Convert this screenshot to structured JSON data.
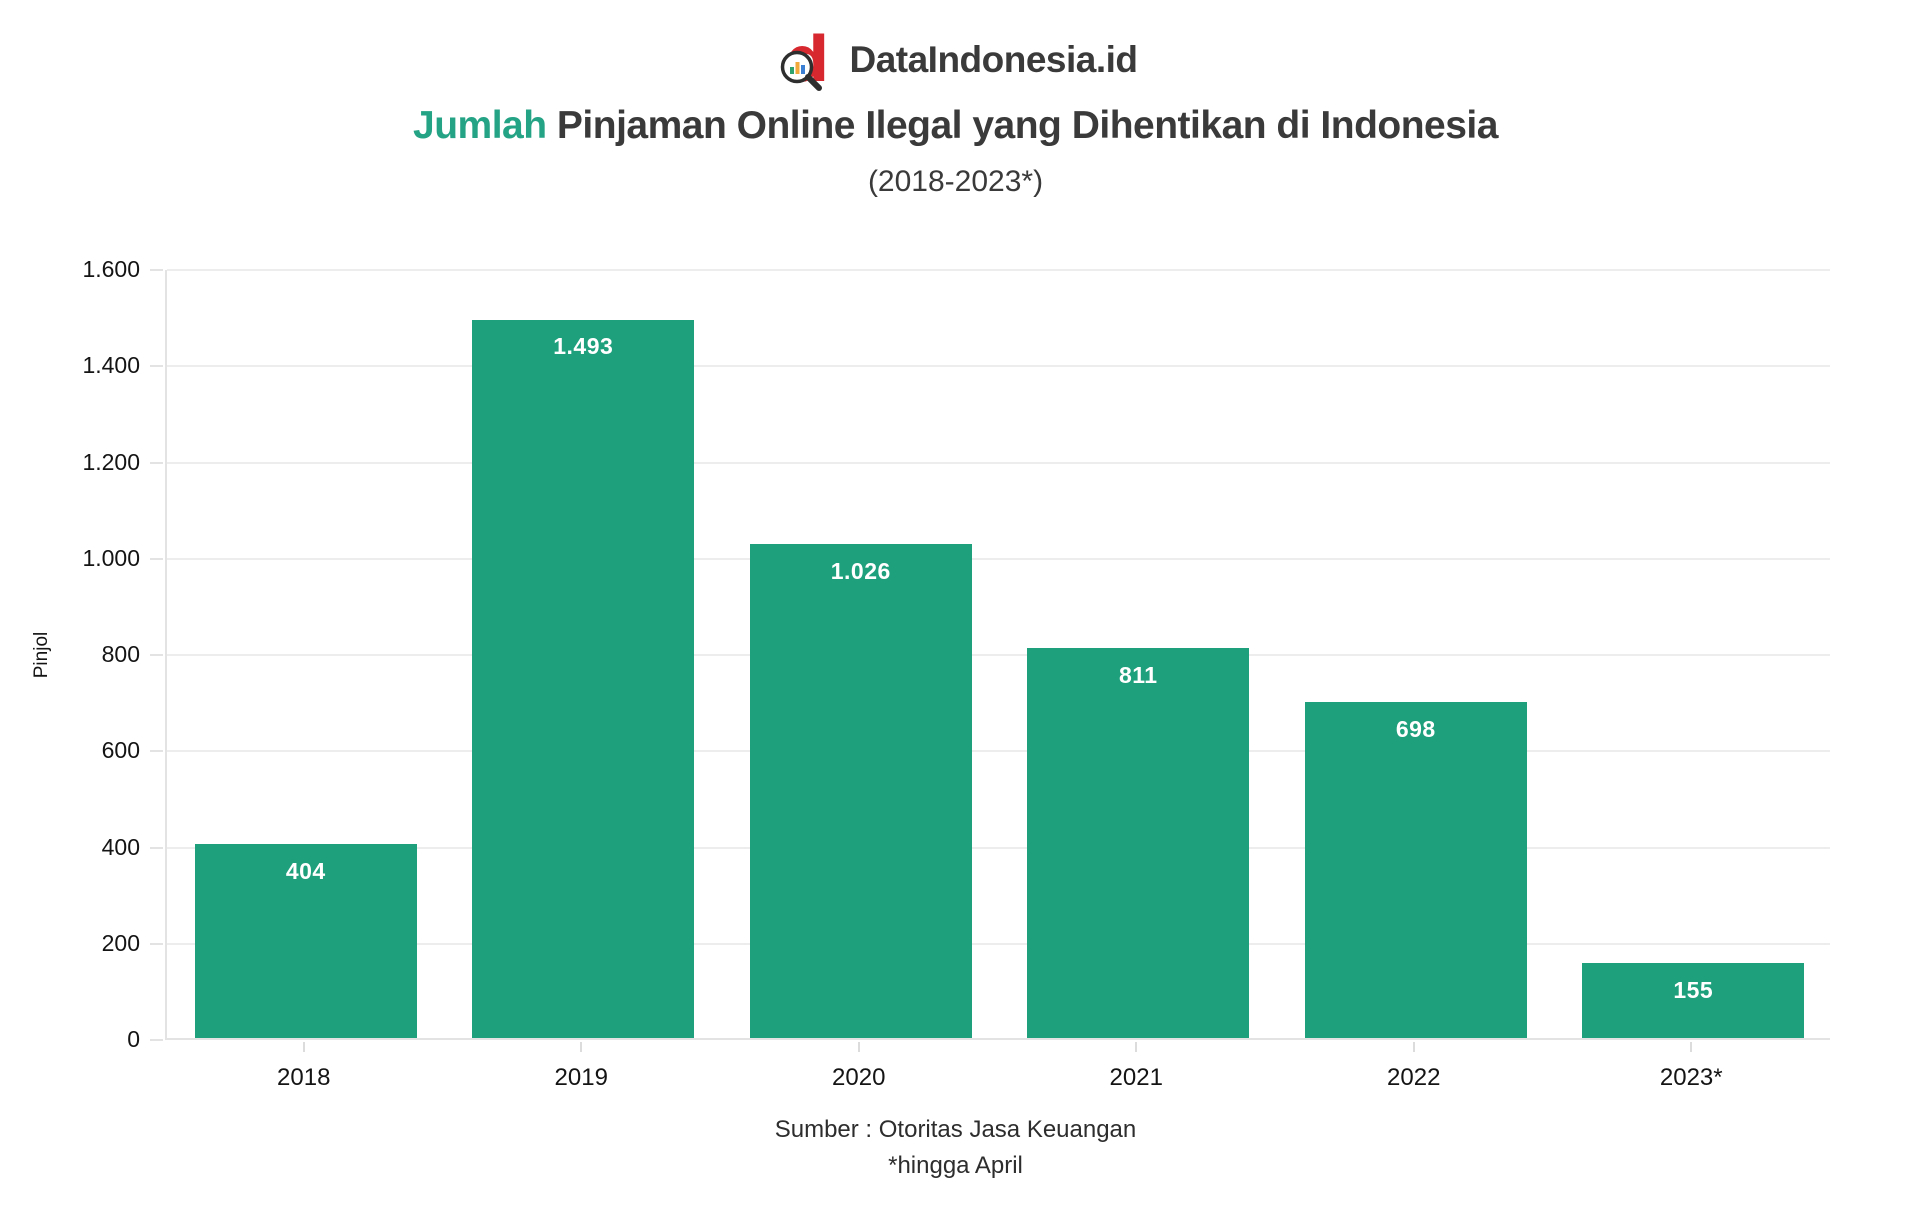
{
  "logo": {
    "text": "DataIndonesia.id",
    "icon": "dataindonesia-logo-icon",
    "red": "#d7282f"
  },
  "title": {
    "highlight": "Jumlah",
    "rest": " Pinjaman Online Ilegal yang Dihentikan di Indonesia",
    "subtitle": "(2018-2023*)"
  },
  "colors": {
    "bar_green": "#1fa07d",
    "accent_green": "#25a385",
    "logo_red": "#d7282f",
    "gridline": "#ededed",
    "axis_line": "#e3e3e3",
    "text_dark": "#3a3a3a",
    "tick_text": "#141414",
    "bar_value_text": "#ffffff"
  },
  "chart_data": {
    "type": "bar",
    "title": "Jumlah Pinjaman Online Ilegal yang Dihentikan di Indonesia (2018-2023*)",
    "categories": [
      "2018",
      "2019",
      "2020",
      "2021",
      "2022",
      "2023*"
    ],
    "values": [
      404,
      1493,
      1026,
      811,
      698,
      155
    ],
    "value_labels": [
      "404",
      "1.493",
      "1.026",
      "811",
      "698",
      "155"
    ],
    "xlabel": "",
    "ylabel": "Pinjol",
    "ylim": [
      0,
      1600
    ],
    "ytick_values": [
      0,
      200,
      400,
      600,
      800,
      1000,
      1200,
      1400,
      1600
    ],
    "ytick_labels": [
      "0",
      "200",
      "400",
      "600",
      "800",
      "1.000",
      "1.200",
      "1.400",
      "1.600"
    ],
    "grid": "horizontal-on",
    "legend_position": "none",
    "bar_color": "#1fa07d",
    "value_label_position": "inside-top"
  },
  "footer": {
    "source": "Sumber : Otoritas Jasa Keuangan",
    "note": "*hingga April"
  }
}
